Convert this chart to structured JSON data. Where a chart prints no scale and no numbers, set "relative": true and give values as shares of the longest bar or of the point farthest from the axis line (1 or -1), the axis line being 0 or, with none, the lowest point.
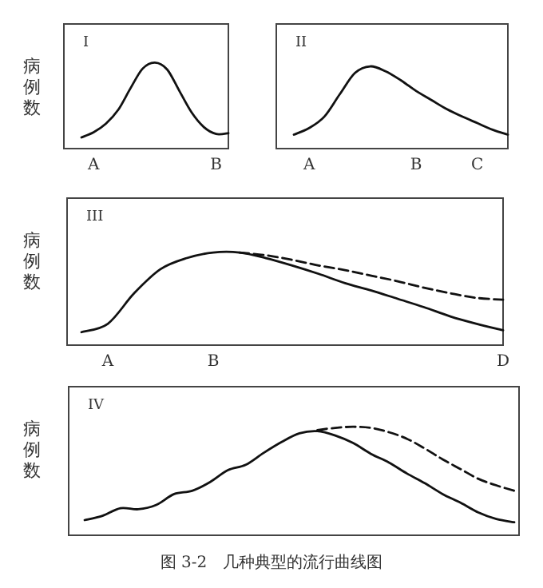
{
  "chart_data": [
    {
      "type": "line",
      "title": "I",
      "ylabel": "病例数",
      "relative": true,
      "categories": [
        null,
        "A",
        null,
        null,
        null,
        null,
        null,
        null,
        null,
        null,
        null,
        "B",
        null
      ],
      "series": [
        {
          "color": "#111111",
          "line_style": "solid",
          "values": [
            0.13,
            0.19,
            0.29,
            0.45,
            0.7,
            0.93,
            1,
            0.92,
            0.67,
            0.42,
            0.25,
            0.17,
            0.18
          ]
        }
      ]
    },
    {
      "type": "line",
      "title": "II",
      "relative": true,
      "categories": [
        null,
        "A",
        null,
        null,
        null,
        null,
        null,
        null,
        "B",
        null,
        null,
        null,
        "C",
        null,
        null
      ],
      "series": [
        {
          "color": "#111111",
          "line_style": "solid",
          "values": [
            0.17,
            0.25,
            0.39,
            0.66,
            0.92,
            1,
            0.94,
            0.83,
            0.7,
            0.59,
            0.48,
            0.39,
            0.31,
            0.23,
            0.17
          ]
        }
      ]
    },
    {
      "type": "line",
      "title": "III",
      "ylabel": "病例数",
      "relative": true,
      "categories": [
        null,
        "A",
        null,
        null,
        null,
        "B",
        null,
        null,
        null,
        null,
        null,
        null,
        null,
        null,
        null,
        null,
        "D"
      ],
      "series": [
        {
          "color": "#111111",
          "line_style": "solid",
          "values": [
            0.14,
            0.23,
            0.56,
            0.82,
            0.94,
            1,
            1,
            0.94,
            0.86,
            0.77,
            0.67,
            0.59,
            0.5,
            0.41,
            0.31,
            0.23,
            0.16
          ]
        },
        {
          "color": "#111111",
          "line_style": "dashed",
          "values": [
            null,
            null,
            null,
            null,
            null,
            null,
            1,
            0.97,
            0.92,
            0.86,
            0.81,
            0.75,
            0.69,
            0.62,
            0.56,
            0.51,
            0.49
          ]
        }
      ]
    },
    {
      "type": "line",
      "title": "IV",
      "ylabel": "病例数",
      "relative": true,
      "categories": [
        null,
        null,
        null,
        null,
        null,
        null,
        null,
        null,
        null,
        null,
        null,
        null,
        null,
        null,
        null,
        null,
        null,
        null,
        null,
        null,
        null,
        null,
        null,
        null,
        null
      ],
      "annotations": [
        "图 3-2　几种典型的流行曲线图"
      ],
      "series": [
        {
          "color": "#111111",
          "line_style": "solid",
          "values": [
            0.14,
            0.18,
            0.25,
            0.24,
            0.28,
            0.38,
            0.41,
            0.49,
            0.6,
            0.65,
            0.76,
            0.86,
            0.94,
            0.96,
            0.92,
            0.85,
            0.75,
            0.67,
            0.57,
            0.48,
            0.38,
            0.3,
            0.21,
            0.15,
            0.12
          ]
        },
        {
          "color": "#111111",
          "line_style": "dashed",
          "values": [
            null,
            null,
            null,
            null,
            null,
            null,
            null,
            null,
            null,
            null,
            null,
            null,
            null,
            0.97,
            0.99,
            1,
            0.99,
            0.95,
            0.89,
            0.8,
            0.7,
            0.61,
            0.52,
            0.46,
            0.41
          ]
        }
      ]
    }
  ]
}
